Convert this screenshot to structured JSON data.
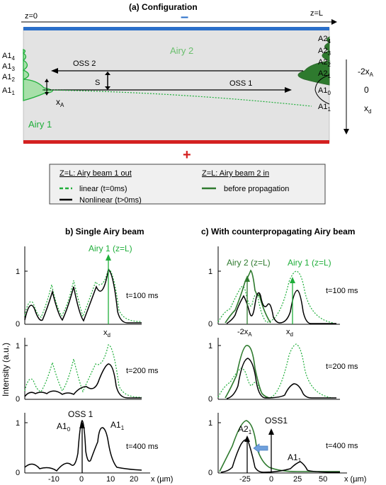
{
  "config": {
    "title": "(a)  Configuration",
    "z0": "z=0",
    "zL": "z=L",
    "minus": "–",
    "plus": "+",
    "airy1": "Airy 1",
    "airy2": "Airy 2",
    "oss1": "OSS 1",
    "oss2": "OSS 2",
    "s": "S",
    "xA": "x",
    "xA_sub": "A",
    "left_levels": [
      {
        "main": "A1",
        "sub": "4"
      },
      {
        "main": "A1",
        "sub": "3"
      },
      {
        "main": "A1",
        "sub": "2"
      },
      {
        "main": "A1",
        "sub": "1"
      }
    ],
    "right_levels": [
      {
        "main": "A2",
        "sub": "4"
      },
      {
        "main": "A2",
        "sub": "3"
      },
      {
        "main": "A2",
        "sub": "2"
      },
      {
        "main": "A2",
        "sub": "1"
      },
      {
        "main": "A1",
        "sub": "0"
      },
      {
        "main": "A1",
        "sub": "1"
      }
    ],
    "axis_labels": [
      {
        "main": "-2x",
        "sub": "A"
      },
      {
        "main": "0",
        "sub": ""
      },
      {
        "main": "x",
        "sub": "d"
      }
    ],
    "colors": {
      "top_electrode": "#2a6fc9",
      "bottom_electrode": "#d42020",
      "crystal": "#e3e3e3",
      "airy1": "#1fae3a",
      "airy2": "#2e7a2e"
    }
  },
  "legend": {
    "col1_title": "Z=L:  Airy beam 1 out",
    "col1_item1": "linear (t=0ms)",
    "col1_item2": "Nonlinear (t>0ms)",
    "col2_title": "Z=L:  Airy beam 2 in",
    "col2_item1": "before propagation"
  },
  "panel_b": {
    "title": "b) Single Airy beam",
    "ylabel": "Intensity (a.u.)",
    "airy1_label": "Airy 1 (z=L)",
    "xd": "x",
    "xd_sub": "d",
    "oss1": "OSS 1",
    "a10": {
      "main": "A1",
      "sub": "0"
    },
    "a11": {
      "main": "A1",
      "sub": "1"
    },
    "times": [
      "t=100 ms",
      "t=200 ms",
      "t=400 ms"
    ],
    "yticks": [
      "0",
      "1"
    ],
    "xticks": [
      "-10",
      "0",
      "10",
      "20"
    ],
    "xaxis": "x (µm)"
  },
  "panel_c": {
    "title": "c) With counterpropagating  Airy beam",
    "airy2_label": "Airy 2 (z=L)",
    "airy1_label": "Airy 1 (z=L)",
    "m2xa": "-2x",
    "m2xa_sub": "A",
    "xd": "x",
    "xd_sub": "d",
    "a21": {
      "main": "A2",
      "sub": "1"
    },
    "oss1": "OSS1",
    "a11": {
      "main": "A1",
      "sub": "1"
    },
    "times": [
      "t=100 ms",
      "t=200 ms",
      "t=400 ms"
    ],
    "yticks": [
      "0",
      "1"
    ],
    "xticks": [
      "-25",
      "0",
      "25",
      "50"
    ],
    "xaxis": "x (µm)"
  }
}
